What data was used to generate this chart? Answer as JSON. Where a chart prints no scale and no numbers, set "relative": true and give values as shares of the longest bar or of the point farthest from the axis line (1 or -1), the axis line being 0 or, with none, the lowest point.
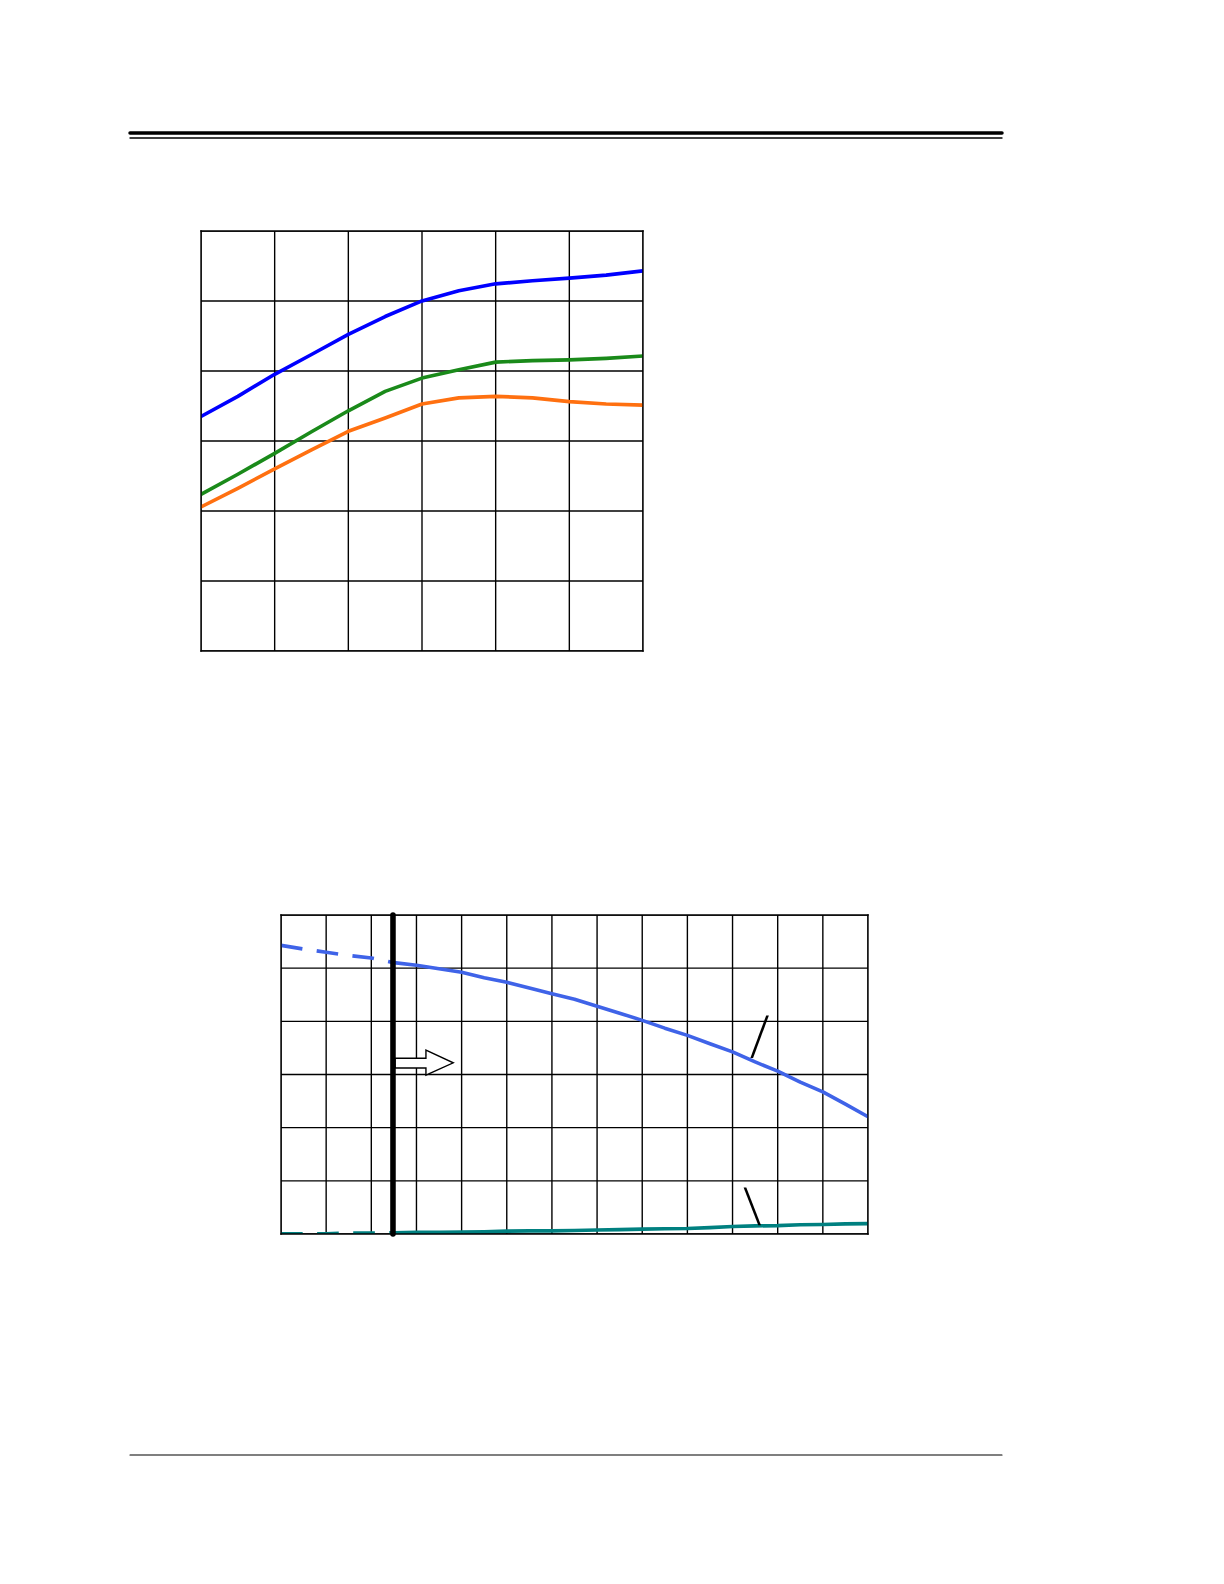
{
  "chart_data": [
    {
      "type": "line",
      "relative": true,
      "grid": true,
      "categories": [
        null,
        null,
        null,
        null,
        null,
        null,
        null,
        null,
        null,
        null,
        null,
        null,
        null
      ],
      "series": [
        {
          "color": "#0000ff",
          "values": [
            0.617,
            0.67,
            0.728,
            0.78,
            0.833,
            0.88,
            0.921,
            0.948,
            0.966,
            0.974,
            0.981,
            0.989,
            1
          ]
        },
        {
          "color": "#1a8a1a",
          "values": [
            0.412,
            0.465,
            0.52,
            0.577,
            0.632,
            0.683,
            0.718,
            0.74,
            0.76,
            0.764,
            0.766,
            0.77,
            0.776
          ]
        },
        {
          "color": "#ff7010",
          "values": [
            0.379,
            0.428,
            0.479,
            0.529,
            0.578,
            0.613,
            0.65,
            0.666,
            0.67,
            0.666,
            0.656,
            0.65,
            0.647
          ]
        }
      ]
    },
    {
      "type": "line",
      "relative": true,
      "grid": true,
      "categories": [
        null,
        null,
        null,
        null,
        null,
        null,
        null,
        null,
        null,
        null,
        null,
        null,
        null,
        null,
        null,
        null,
        null,
        null,
        null,
        null,
        null,
        null,
        null,
        null,
        null,
        null,
        null
      ],
      "series": [
        {
          "color": "#3f63e8",
          "line_style": "dashed",
          "values": [
            1,
            0.987,
            0.976,
            0.965,
            0.956,
            0.94,
            null,
            null,
            null,
            null,
            null,
            null,
            null,
            null,
            null,
            null,
            null,
            null,
            null,
            null,
            null,
            null,
            null,
            null,
            null,
            null,
            null
          ]
        },
        {
          "color": "#3f63e8",
          "line_style": "solid",
          "values": [
            null,
            null,
            null,
            null,
            null,
            0.94,
            0.931,
            0.919,
            0.907,
            0.888,
            0.872,
            0.852,
            0.832,
            0.813,
            0.789,
            0.765,
            0.74,
            0.713,
            0.688,
            0.659,
            0.631,
            0.596,
            0.564,
            0.526,
            0.492,
            0.45,
            0.406
          ]
        },
        {
          "color": "#008080",
          "line_style": "dashed",
          "values": [
            0.001,
            0.001,
            0.001,
            0.003,
            0.003,
            0.004,
            null,
            null,
            null,
            null,
            null,
            null,
            null,
            null,
            null,
            null,
            null,
            null,
            null,
            null,
            null,
            null,
            null,
            null,
            null,
            null,
            null
          ]
        },
        {
          "color": "#008080",
          "line_style": "solid",
          "values": [
            null,
            null,
            null,
            null,
            null,
            0.004,
            0.006,
            0.006,
            0.007,
            0.008,
            0.01,
            0.011,
            0.011,
            0.012,
            0.014,
            0.015,
            0.017,
            0.018,
            0.019,
            0.022,
            0.026,
            0.028,
            0.029,
            0.032,
            0.033,
            0.035,
            0.036
          ]
        }
      ]
    }
  ]
}
